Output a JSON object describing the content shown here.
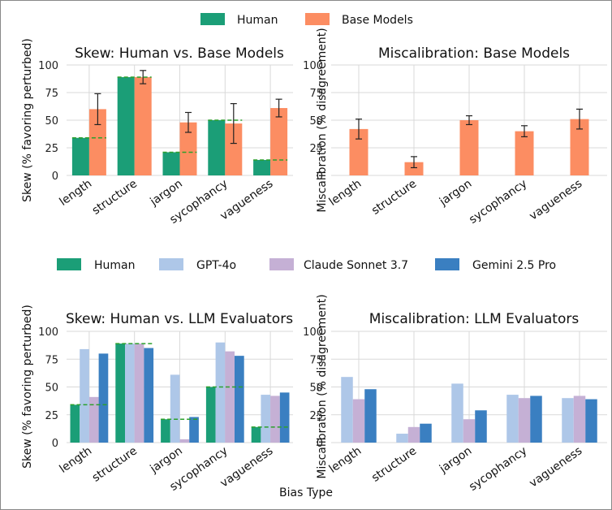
{
  "colors": {
    "human": "#1b9e77",
    "base": "#fc8d62",
    "gpt4o": "#aec7e8",
    "claude": "#c5b0d5",
    "gemini": "#3a7fc1",
    "dash": "#2ca02c",
    "frame": "#888888"
  },
  "legend_top": {
    "items": [
      {
        "label": "Human",
        "color_key": "human"
      },
      {
        "label": "Base Models",
        "color_key": "base"
      }
    ]
  },
  "legend_mid": {
    "items": [
      {
        "label": "Human",
        "color_key": "human"
      },
      {
        "label": "GPT-4o",
        "color_key": "gpt4o"
      },
      {
        "label": "Claude Sonnet 3.7",
        "color_key": "claude"
      },
      {
        "label": "Gemini 2.5 Pro",
        "color_key": "gemini"
      }
    ]
  },
  "xlabel": "Bias Type",
  "chart_data": [
    {
      "id": "tl",
      "type": "bar",
      "title": "Skew: Human vs. Base Models",
      "ylabel": "Skew (% favoring perturbed)",
      "ylim": [
        0,
        100
      ],
      "yticks": [
        "0",
        "25",
        "50",
        "75",
        "100"
      ],
      "categories": [
        "length",
        "structure",
        "jargon",
        "sycophancy",
        "vagueness"
      ],
      "series": [
        {
          "name": "Human",
          "color_key": "human",
          "values": [
            34,
            89,
            21,
            50,
            14
          ]
        },
        {
          "name": "Base Models",
          "color_key": "base",
          "values": [
            60,
            89,
            48,
            47,
            61
          ],
          "error": [
            14,
            6,
            9,
            18,
            8
          ]
        }
      ],
      "human_reference": [
        34,
        89,
        21,
        50,
        14
      ]
    },
    {
      "id": "tr",
      "type": "bar",
      "title": "Miscalibration: Base Models",
      "ylabel": "Miscalibration (% disagreement)",
      "ylim": [
        0,
        100
      ],
      "yticks": [
        "0",
        "25",
        "50",
        "75",
        "100"
      ],
      "categories": [
        "length",
        "structure",
        "jargon",
        "sycophancy",
        "vagueness"
      ],
      "series": [
        {
          "name": "Base Models",
          "color_key": "base",
          "values": [
            42,
            12,
            50,
            40,
            51
          ],
          "error": [
            9,
            5,
            4,
            5,
            9
          ]
        }
      ]
    },
    {
      "id": "bl",
      "type": "bar",
      "title": "Skew: Human vs. LLM Evaluators",
      "ylabel": "Skew (% favoring perturbed)",
      "ylim": [
        0,
        100
      ],
      "yticks": [
        "0",
        "25",
        "50",
        "75",
        "100"
      ],
      "categories": [
        "length",
        "structure",
        "jargon",
        "sycophancy",
        "vagueness"
      ],
      "series": [
        {
          "name": "Human",
          "color_key": "human",
          "values": [
            34,
            89,
            21,
            50,
            14
          ]
        },
        {
          "name": "GPT-4o",
          "color_key": "gpt4o",
          "values": [
            84,
            89,
            61,
            90,
            43
          ]
        },
        {
          "name": "Claude Sonnet 3.7",
          "color_key": "claude",
          "values": [
            41,
            89,
            3,
            82,
            42
          ]
        },
        {
          "name": "Gemini 2.5 Pro",
          "color_key": "gemini",
          "values": [
            80,
            85,
            23,
            78,
            45
          ]
        }
      ],
      "human_reference": [
        34,
        89,
        21,
        50,
        14
      ]
    },
    {
      "id": "br",
      "type": "bar",
      "title": "Miscalibration: LLM Evaluators",
      "ylabel": "Miscalibration (% disagreement)",
      "ylim": [
        0,
        100
      ],
      "yticks": [
        "0",
        "25",
        "50",
        "75",
        "100"
      ],
      "categories": [
        "length",
        "structure",
        "jargon",
        "sycophancy",
        "vagueness"
      ],
      "series": [
        {
          "name": "GPT-4o",
          "color_key": "gpt4o",
          "values": [
            59,
            8,
            53,
            43,
            40
          ]
        },
        {
          "name": "Claude Sonnet 3.7",
          "color_key": "claude",
          "values": [
            39,
            14,
            21,
            40,
            42
          ]
        },
        {
          "name": "Gemini 2.5 Pro",
          "color_key": "gemini",
          "values": [
            48,
            17,
            29,
            42,
            39
          ]
        }
      ]
    }
  ]
}
